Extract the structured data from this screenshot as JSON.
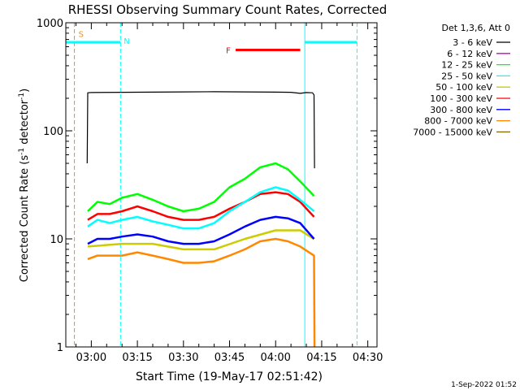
{
  "chart_data": {
    "type": "line",
    "title": "RHESSI Observing Summary Count Rates, Corrected",
    "xlabel": "Start Time (19-May-17 02:51:42)",
    "ylabel": "Corrected Count Rate (s⁻¹ detector⁻¹)",
    "ylabel_main": "Corrected Count Rate (s",
    "ylabel_sup1": "-1",
    "ylabel_mid": " detector",
    "ylabel_sup2": "-1",
    "ylabel_end": ")",
    "y_scale": "log",
    "ylim": [
      1,
      1000
    ],
    "y_ticks": [
      {
        "value": 1,
        "label": "1"
      },
      {
        "value": 10,
        "label": "10"
      },
      {
        "value": 100,
        "label": "100"
      },
      {
        "value": 1000,
        "label": "1000"
      }
    ],
    "xlim": [
      "02:51:42",
      "04:33:00"
    ],
    "x_ticks": [
      {
        "time": "03:00",
        "label": "03:00"
      },
      {
        "time": "03:15",
        "label": "03:15"
      },
      {
        "time": "03:30",
        "label": "03:30"
      },
      {
        "time": "03:45",
        "label": "03:45"
      },
      {
        "time": "04:00",
        "label": "04:00"
      },
      {
        "time": "04:15",
        "label": "04:15"
      },
      {
        "time": "04:30",
        "label": "04:30"
      }
    ],
    "legend_position": "right",
    "legend_header": "Det 1,3,6, Att 0",
    "series": [
      {
        "name": "3 - 6 keV",
        "color": "#000000",
        "x": [
          "02:58:40",
          "02:58:50",
          "03:00",
          "03:10",
          "03:20",
          "03:30",
          "03:40",
          "03:50",
          "04:00",
          "04:05",
          "04:08",
          "04:10",
          "04:12",
          "04:12:30",
          "04:12:40"
        ],
        "y": [
          50,
          225,
          226,
          227,
          228,
          229,
          230,
          229,
          228,
          227,
          222,
          226,
          225,
          215,
          45
        ]
      },
      {
        "name": "6 - 12 keV",
        "color": "#cc00cc",
        "x": [],
        "y": []
      },
      {
        "name": "12 - 25 keV",
        "color": "#00ff00",
        "x": [
          "02:58:50",
          "03:02",
          "03:06",
          "03:10",
          "03:15",
          "03:20",
          "03:25",
          "03:30",
          "03:35",
          "03:40",
          "03:45",
          "03:50",
          "03:55",
          "04:00",
          "04:04",
          "04:08",
          "04:12:30"
        ],
        "y": [
          18,
          22,
          21,
          24,
          26,
          23,
          20,
          18,
          19,
          22,
          30,
          36,
          46,
          50,
          44,
          34,
          25
        ]
      },
      {
        "name": "25 - 50 keV",
        "color": "#00ffff",
        "x": [
          "02:58:50",
          "03:02",
          "03:06",
          "03:10",
          "03:15",
          "03:20",
          "03:25",
          "03:30",
          "03:35",
          "03:40",
          "03:45",
          "03:50",
          "03:55",
          "04:00",
          "04:04",
          "04:08",
          "04:12:30"
        ],
        "y": [
          13,
          15,
          14,
          15,
          16,
          14.5,
          13.5,
          12.5,
          12.5,
          14,
          18,
          22,
          27,
          30,
          28,
          23,
          18
        ]
      },
      {
        "name": "50 - 100 keV",
        "color": "#cccc00",
        "x": [
          "02:58:50",
          "03:10",
          "03:20",
          "03:30",
          "03:40",
          "03:50",
          "04:00",
          "04:08",
          "04:12:30"
        ],
        "y": [
          8.5,
          9,
          9,
          8,
          8,
          10,
          12,
          12,
          10
        ]
      },
      {
        "name": "100 - 300 keV",
        "color": "#ff0000",
        "x": [
          "02:58:50",
          "03:02",
          "03:06",
          "03:10",
          "03:15",
          "03:20",
          "03:25",
          "03:30",
          "03:35",
          "03:40",
          "03:45",
          "03:50",
          "03:55",
          "04:00",
          "04:04",
          "04:08",
          "04:12:30"
        ],
        "y": [
          15,
          17,
          17,
          18,
          20,
          18,
          16,
          15,
          15,
          16,
          19,
          22,
          26,
          27,
          26,
          22,
          16
        ]
      },
      {
        "name": "300 - 800 keV",
        "color": "#0000ff",
        "x": [
          "02:58:50",
          "03:02",
          "03:06",
          "03:10",
          "03:15",
          "03:20",
          "03:25",
          "03:30",
          "03:35",
          "03:40",
          "03:45",
          "03:50",
          "03:55",
          "04:00",
          "04:04",
          "04:08",
          "04:12:30"
        ],
        "y": [
          9,
          10,
          10,
          10.5,
          11,
          10.5,
          9.5,
          9,
          9,
          9.5,
          11,
          13,
          15,
          16,
          15.5,
          14,
          10
        ]
      },
      {
        "name": "800 - 7000 keV",
        "color": "#ff8800",
        "x": [
          "02:58:50",
          "03:02",
          "03:06",
          "03:10",
          "03:15",
          "03:20",
          "03:25",
          "03:30",
          "03:35",
          "03:40",
          "03:45",
          "03:50",
          "03:55",
          "04:00",
          "04:04",
          "04:08",
          "04:12:30",
          "04:12:40"
        ],
        "y": [
          6.5,
          7,
          7,
          7,
          7.5,
          7,
          6.5,
          6,
          6,
          6.2,
          7,
          8,
          9.5,
          10,
          9.5,
          8.5,
          7,
          1
        ]
      },
      {
        "name": "7000 - 15000 keV",
        "color": "#886600",
        "x": [],
        "y": []
      }
    ],
    "annotations": [
      {
        "text": "S",
        "color": "#ff8800"
      },
      {
        "text": "N",
        "color": "#00ffff"
      },
      {
        "text": "F",
        "color": "#ff0000"
      }
    ],
    "night_bars": [
      {
        "start": "02:51:42",
        "end": "03:09:30",
        "y": 660
      },
      {
        "start": "04:09:30",
        "end": "04:26:30",
        "y": 660
      }
    ],
    "flare_bar": {
      "start": "03:47",
      "end": "04:08",
      "y": 560
    },
    "vlines": [
      {
        "time": "02:51:42",
        "color": "#00ffff",
        "style": "solid"
      },
      {
        "time": "02:54:30",
        "color": "#ff8800",
        "style": "dashed"
      },
      {
        "time": "03:09:30",
        "color": "#00ffff",
        "style": "dashed"
      },
      {
        "time": "04:09:30",
        "color": "#00ffff",
        "style": "solid"
      },
      {
        "time": "04:26:30",
        "color": "#00ffff",
        "style": "dashed"
      }
    ]
  },
  "timestamp": "1-Sep-2022 01:52"
}
